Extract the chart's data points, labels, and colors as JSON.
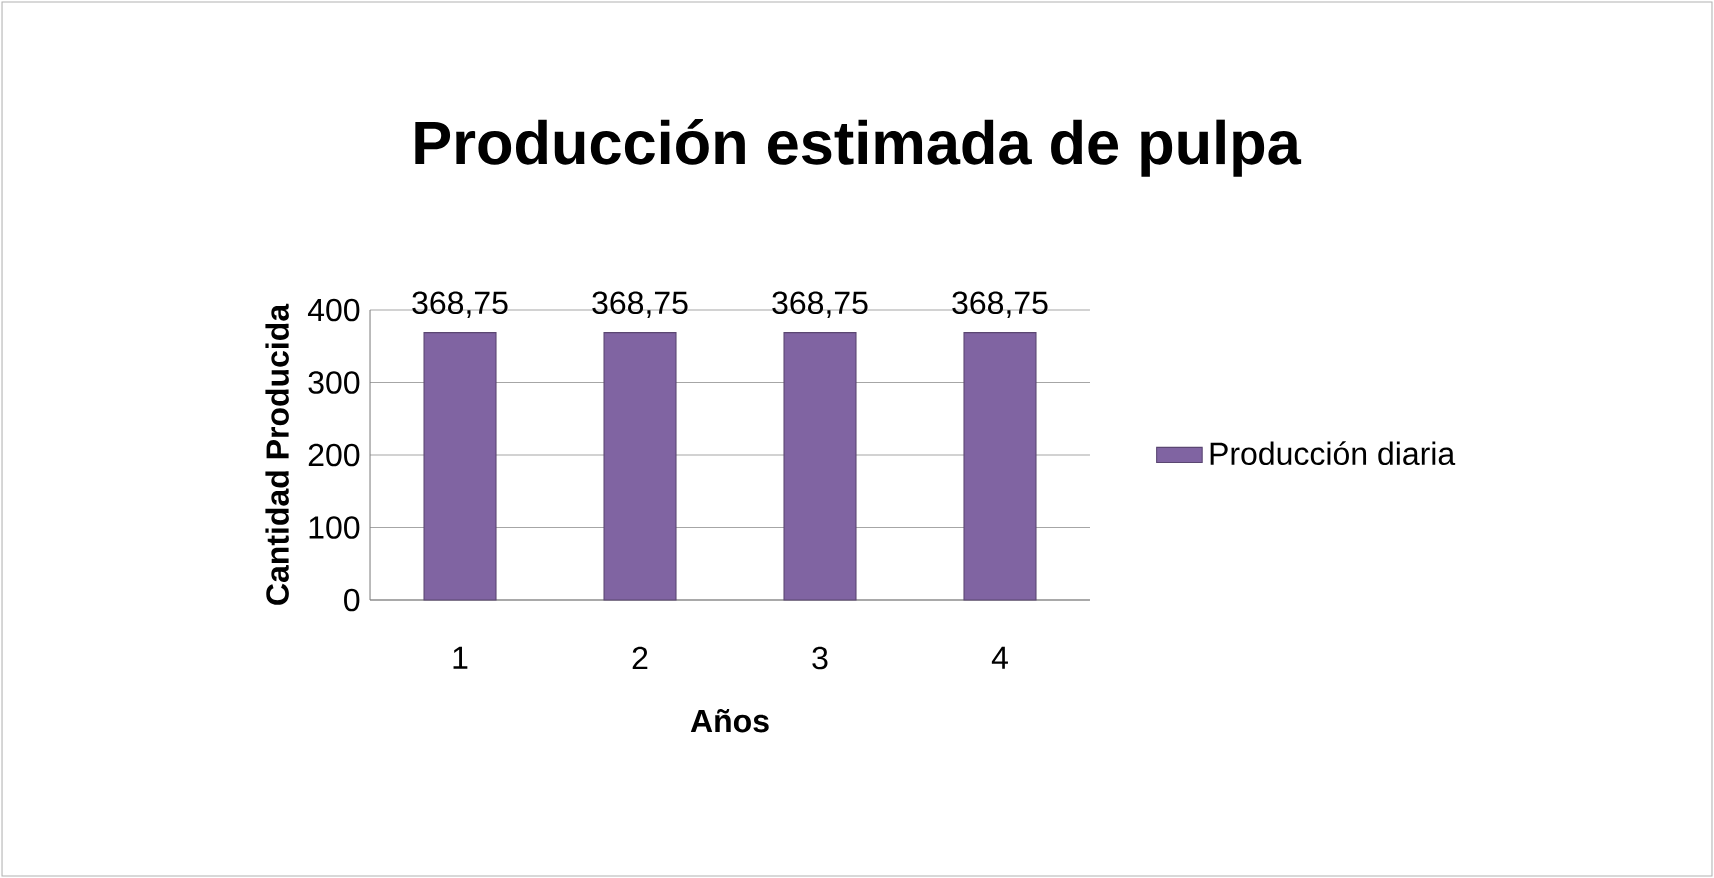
{
  "chart_data": {
    "type": "bar",
    "title": "Producción estimada de pulpa",
    "xlabel": "Años",
    "ylabel": "Cantidad Producida",
    "categories": [
      "1",
      "2",
      "3",
      "4"
    ],
    "series": [
      {
        "name": "Producción diaria",
        "color": "#8064a2",
        "values": [
          368.75,
          368.75,
          368.75,
          368.75
        ],
        "value_labels": [
          "368,75",
          "368,75",
          "368,75",
          "368,75"
        ]
      }
    ],
    "ylim": [
      0,
      400
    ],
    "yticks": [
      0,
      100,
      200,
      300,
      400
    ],
    "grid": "y",
    "legend": "right"
  }
}
